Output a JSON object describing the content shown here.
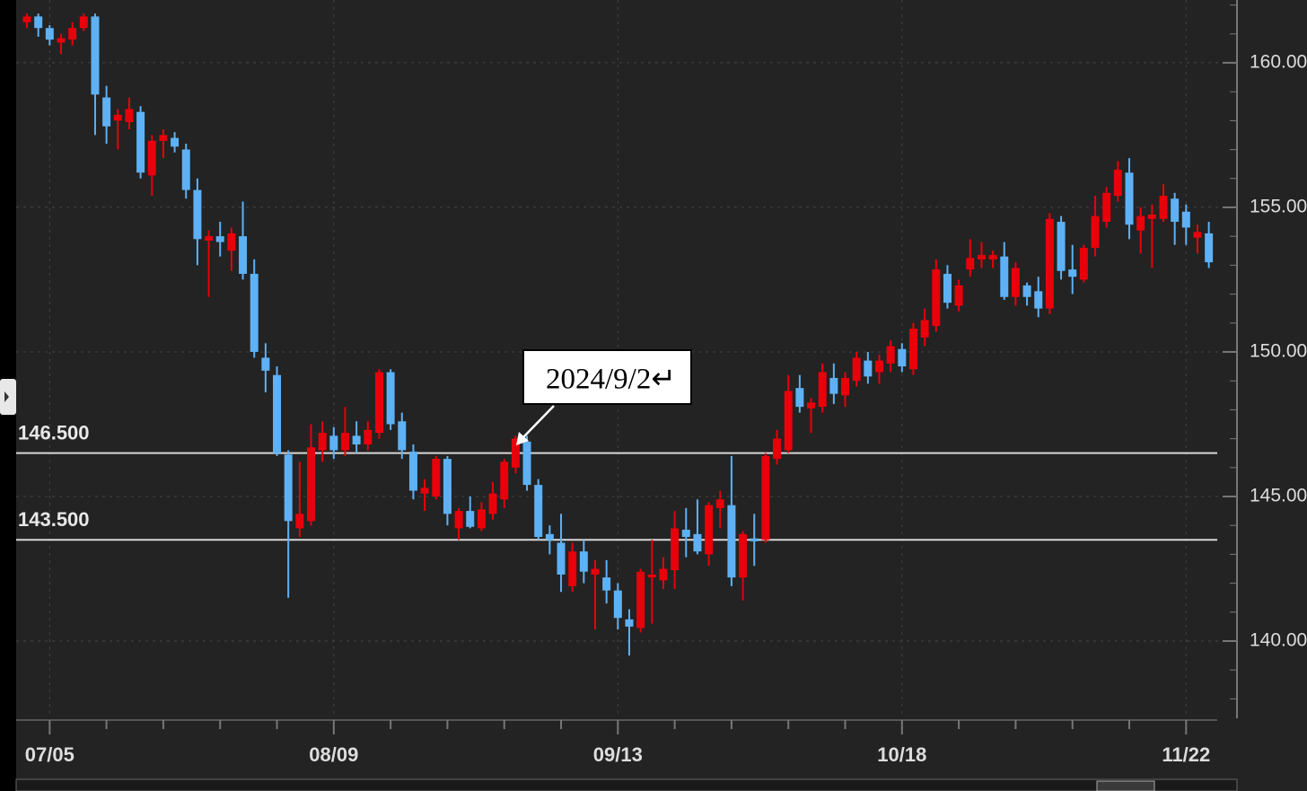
{
  "chart_data": {
    "type": "candlestick",
    "categories": [
      null,
      null,
      "07/05",
      null,
      null,
      null,
      null,
      null,
      null,
      null,
      null,
      null,
      null,
      null,
      null,
      null,
      null,
      null,
      null,
      null,
      null,
      null,
      null,
      null,
      null,
      null,
      null,
      "08/09",
      null,
      null,
      null,
      null,
      null,
      null,
      null,
      null,
      null,
      null,
      null,
      null,
      null,
      null,
      null,
      null,
      null,
      null,
      null,
      null,
      null,
      null,
      null,
      null,
      "09/13",
      null,
      null,
      null,
      null,
      null,
      null,
      null,
      null,
      null,
      null,
      null,
      null,
      null,
      null,
      null,
      null,
      null,
      null,
      null,
      null,
      null,
      null,
      null,
      null,
      "10/18",
      null,
      null,
      null,
      null,
      null,
      null,
      null,
      null,
      null,
      null,
      null,
      null,
      null,
      null,
      null,
      null,
      null,
      null,
      null,
      null,
      null,
      null,
      null,
      null,
      "11/22",
      null,
      null
    ],
    "open": [
      161.4,
      161.6,
      161.2,
      160.7,
      160.8,
      161.2,
      161.6,
      158.8,
      158.0,
      157.95,
      158.3,
      156.1,
      157.3,
      157.4,
      157.0,
      155.6,
      153.85,
      154.0,
      153.5,
      154.0,
      152.7,
      149.8,
      149.2,
      146.45,
      143.9,
      144.15,
      146.6,
      147.1,
      146.6,
      147.1,
      146.8,
      147.2,
      149.3,
      147.6,
      146.55,
      145.1,
      145.0,
      146.3,
      143.9,
      144.5,
      143.9,
      144.4,
      144.9,
      146.0,
      146.9,
      145.4,
      143.7,
      143.4,
      141.9,
      143.1,
      142.3,
      142.2,
      141.75,
      140.75,
      140.45,
      142.2,
      142.1,
      142.45,
      143.85,
      143.7,
      143.0,
      144.6,
      144.7,
      142.2,
      143.55,
      143.5,
      146.3,
      146.6,
      148.75,
      148.05,
      148.1,
      149.1,
      148.5,
      149.0,
      149.7,
      149.3,
      149.6,
      150.1,
      149.4,
      150.5,
      150.9,
      152.7,
      151.6,
      152.85,
      153.2,
      153.2,
      153.3,
      151.9,
      152.3,
      152.1,
      151.5,
      154.5,
      152.85,
      152.5,
      153.6,
      154.5,
      155.4,
      156.2,
      154.2,
      154.6,
      154.6,
      155.3,
      154.85,
      153.95,
      154.1
    ],
    "high": [
      161.7,
      161.7,
      161.3,
      161.0,
      161.4,
      161.7,
      161.7,
      159.2,
      158.4,
      158.8,
      158.5,
      157.5,
      157.7,
      157.6,
      157.2,
      156.0,
      154.2,
      154.5,
      154.3,
      155.2,
      153.2,
      150.3,
      149.5,
      146.6,
      146.2,
      147.5,
      147.6,
      147.4,
      148.1,
      147.6,
      147.6,
      149.4,
      149.4,
      147.9,
      146.8,
      145.6,
      146.4,
      146.4,
      144.6,
      145.0,
      144.8,
      145.5,
      146.3,
      147.1,
      147.1,
      145.6,
      144.0,
      144.4,
      143.4,
      143.5,
      142.8,
      142.8,
      142.0,
      141.1,
      142.5,
      143.5,
      142.9,
      144.5,
      144.6,
      144.9,
      144.8,
      145.2,
      146.4,
      143.8,
      144.4,
      146.5,
      147.3,
      149.2,
      149.2,
      148.4,
      149.6,
      149.6,
      149.3,
      150.0,
      150.0,
      149.9,
      150.4,
      150.3,
      151.0,
      151.5,
      153.2,
      153.0,
      152.5,
      153.9,
      153.8,
      153.5,
      153.8,
      153.1,
      152.4,
      152.6,
      154.8,
      154.7,
      153.7,
      153.7,
      155.4,
      155.7,
      156.6,
      156.7,
      155.0,
      155.1,
      155.8,
      155.5,
      155.1,
      154.4,
      154.5
    ],
    "low": [
      161.2,
      160.9,
      160.6,
      160.3,
      160.6,
      161.1,
      157.5,
      157.2,
      157.0,
      157.7,
      156.0,
      155.4,
      156.7,
      156.9,
      155.3,
      153.0,
      151.9,
      153.3,
      152.8,
      152.5,
      149.8,
      148.6,
      146.4,
      141.5,
      143.6,
      144.0,
      146.2,
      146.3,
      146.4,
      146.5,
      146.6,
      147.0,
      147.3,
      146.3,
      144.9,
      144.5,
      144.9,
      144.0,
      143.5,
      143.9,
      143.8,
      144.2,
      144.6,
      145.8,
      145.2,
      143.5,
      143.0,
      141.7,
      141.7,
      142.0,
      140.4,
      141.3,
      140.4,
      139.5,
      140.3,
      140.6,
      141.8,
      141.8,
      142.9,
      143.0,
      142.6,
      143.9,
      141.9,
      141.4,
      142.6,
      143.4,
      146.1,
      146.5,
      147.9,
      147.2,
      147.9,
      148.2,
      148.1,
      148.8,
      148.9,
      148.9,
      149.3,
      149.3,
      149.2,
      150.2,
      150.7,
      151.5,
      151.4,
      152.6,
      152.9,
      152.9,
      151.8,
      151.6,
      151.6,
      151.2,
      151.3,
      152.5,
      152.0,
      152.4,
      153.3,
      154.3,
      155.2,
      153.9,
      153.4,
      152.9,
      154.5,
      153.7,
      153.7,
      153.4,
      152.9
    ],
    "close": [
      161.6,
      161.2,
      160.8,
      160.85,
      161.2,
      161.6,
      158.9,
      157.8,
      158.2,
      158.4,
      156.2,
      157.3,
      157.5,
      157.1,
      155.6,
      153.9,
      154.0,
      153.8,
      154.1,
      152.7,
      150.0,
      149.35,
      146.5,
      144.15,
      144.4,
      146.7,
      147.2,
      146.6,
      147.2,
      146.8,
      147.3,
      149.3,
      147.5,
      146.6,
      145.2,
      145.3,
      146.3,
      144.4,
      144.5,
      143.95,
      144.55,
      145.1,
      146.2,
      147.0,
      145.4,
      143.6,
      143.5,
      142.3,
      143.1,
      142.4,
      142.5,
      141.75,
      140.8,
      140.5,
      142.4,
      142.3,
      142.5,
      143.9,
      143.6,
      143.1,
      144.7,
      144.9,
      142.2,
      143.7,
      143.45,
      146.4,
      147.0,
      148.65,
      148.1,
      148.25,
      149.3,
      148.55,
      149.1,
      149.8,
      149.15,
      149.7,
      150.2,
      149.5,
      150.8,
      151.1,
      152.85,
      151.7,
      152.3,
      153.25,
      153.35,
      153.35,
      151.9,
      152.9,
      151.9,
      151.5,
      154.6,
      152.8,
      152.6,
      153.6,
      154.7,
      155.5,
      156.3,
      154.4,
      154.7,
      154.75,
      155.4,
      154.5,
      154.3,
      154.15,
      153.1
    ],
    "up_color": "#e8000b",
    "down_color": "#5eb1f4",
    "ylim": [
      137.33,
      162.17
    ],
    "yticks": [
      {
        "value": 140,
        "label": "140.00"
      },
      {
        "value": 145,
        "label": "145.00"
      },
      {
        "value": 150,
        "label": "150.00"
      },
      {
        "value": 155,
        "label": "155.00"
      },
      {
        "value": 160,
        "label": "160.00"
      }
    ],
    "grid": true,
    "hlines": [
      {
        "value": 146.5,
        "label": "146.500"
      },
      {
        "value": 143.5,
        "label": "143.500"
      }
    ],
    "annotation": "2024/9/2↵"
  }
}
